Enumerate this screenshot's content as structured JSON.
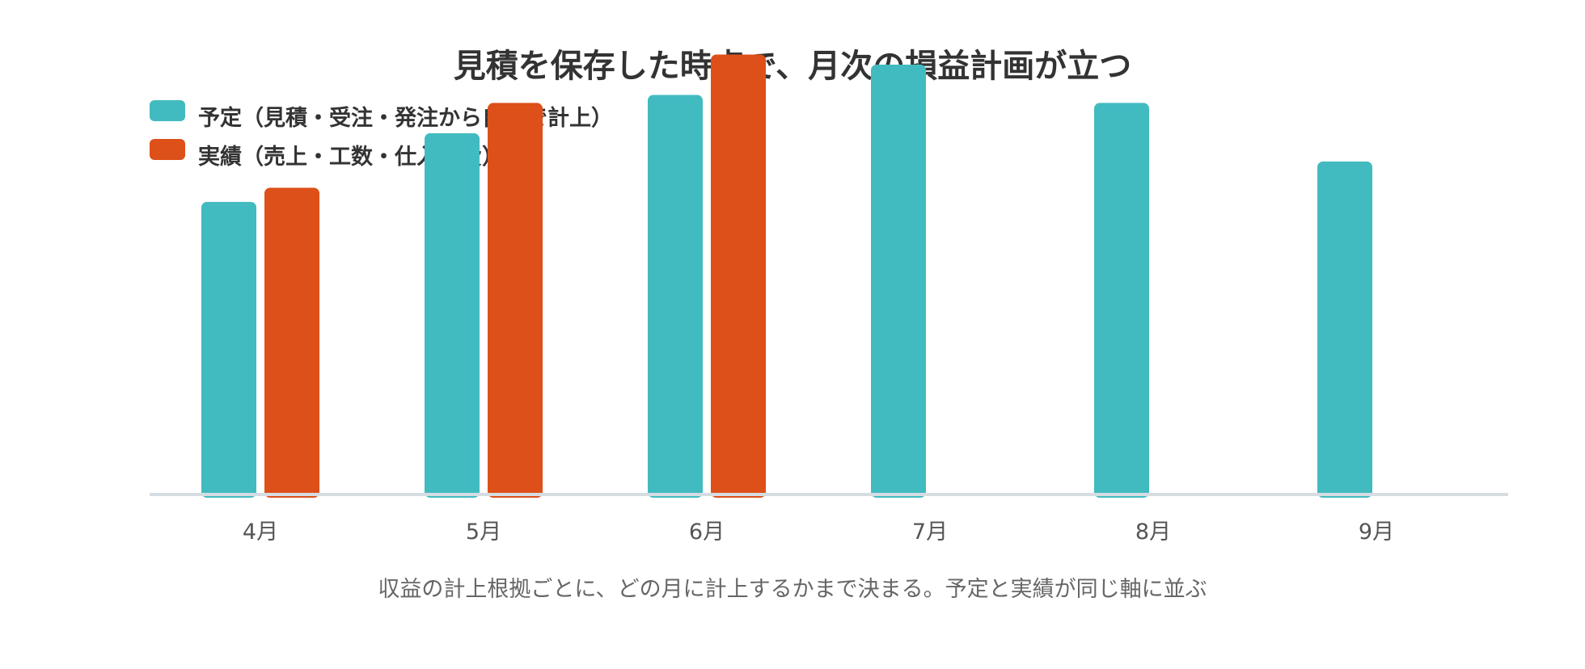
{
  "chart_data": {
    "type": "bar",
    "title": "見積を保存した時点で、月次の損益計画が立つ",
    "categories": [
      "4月",
      "5月",
      "6月",
      "7月",
      "8月",
      "9月"
    ],
    "series": [
      {
        "name": "予定（見積・受注・発注から自動で計上）",
        "color": "#41BBC0",
        "values": [
          290,
          358,
          396,
          426,
          388,
          330
        ]
      },
      {
        "name": "実績（売上・工数・仕入経費）",
        "color": "#DD5019",
        "values": [
          304,
          388,
          436,
          0,
          0,
          0
        ]
      }
    ],
    "ylim": [
      0,
      450
    ],
    "xlabel": "",
    "ylabel": "",
    "grid": false,
    "legend_position": "top-left",
    "caption": "収益の計上根拠ごとに、どの月に計上するかまで決まる。予定と実績が同じ軸に並ぶ"
  }
}
